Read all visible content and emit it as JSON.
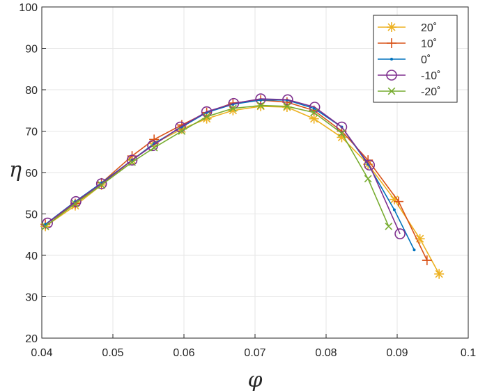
{
  "chart_data": {
    "type": "line",
    "xlabel": "φ",
    "ylabel": "η",
    "xlim": [
      0.04,
      0.1
    ],
    "ylim": [
      20,
      100
    ],
    "xticks": [
      "0.04",
      "0.05",
      "0.06",
      "0.07",
      "0.08",
      "0.09",
      "0.1"
    ],
    "yticks": [
      "20",
      "30",
      "40",
      "50",
      "60",
      "70",
      "80",
      "90",
      "100"
    ],
    "grid": true,
    "legend_position": "top-right",
    "series": [
      {
        "name": "20˚",
        "color": "#EDB120",
        "marker": "asterisk",
        "x": [
          0.0405,
          0.0447,
          0.0484,
          0.0527,
          0.0558,
          0.0597,
          0.0632,
          0.0669,
          0.0708,
          0.0745,
          0.0783,
          0.0822,
          0.0859,
          0.0896,
          0.0932,
          0.0959
        ],
        "y": [
          47.0,
          52.0,
          57.0,
          63.0,
          67.0,
          70.5,
          73.0,
          75.0,
          76.0,
          75.8,
          73.0,
          68.5,
          62.0,
          53.5,
          44.0,
          35.5
        ]
      },
      {
        "name": "10˚",
        "color": "#D95319",
        "marker": "plus",
        "x": [
          0.0405,
          0.0447,
          0.0484,
          0.0527,
          0.0558,
          0.0597,
          0.0632,
          0.0669,
          0.0708,
          0.0745,
          0.0783,
          0.0822,
          0.0859,
          0.0902,
          0.0942
        ],
        "y": [
          47.5,
          52.5,
          57.5,
          64.0,
          68.0,
          71.5,
          74.5,
          76.8,
          77.5,
          77.0,
          75.0,
          70.0,
          63.0,
          53.0,
          38.8
        ]
      },
      {
        "name": "0˚",
        "color": "#0072BD",
        "marker": "dot",
        "x": [
          0.0405,
          0.0447,
          0.0484,
          0.0527,
          0.0558,
          0.0597,
          0.0632,
          0.0669,
          0.0708,
          0.0745,
          0.0783,
          0.0822,
          0.0859,
          0.0896,
          0.0924
        ],
        "y": [
          47.5,
          53.0,
          57.5,
          63.0,
          67.0,
          71.0,
          74.5,
          76.5,
          77.5,
          77.5,
          75.5,
          71.0,
          62.0,
          51.0,
          41.3
        ]
      },
      {
        "name": "-10˚",
        "color": "#7E2F8E",
        "marker": "circle",
        "x": [
          0.0408,
          0.0448,
          0.0484,
          0.0527,
          0.0556,
          0.0595,
          0.0632,
          0.067,
          0.0708,
          0.0746,
          0.0784,
          0.0822,
          0.0861,
          0.0904
        ],
        "y": [
          47.8,
          53.0,
          57.3,
          63.0,
          66.5,
          71.0,
          74.7,
          76.7,
          77.8,
          77.6,
          75.8,
          71.0,
          61.8,
          45.2
        ]
      },
      {
        "name": "-20˚",
        "color": "#77AC30",
        "marker": "cross",
        "x": [
          0.0405,
          0.0447,
          0.0484,
          0.0527,
          0.0558,
          0.0597,
          0.0632,
          0.0669,
          0.0708,
          0.0745,
          0.0783,
          0.0822,
          0.0859,
          0.0888
        ],
        "y": [
          47.0,
          52.5,
          57.0,
          62.5,
          66.0,
          70.0,
          73.5,
          75.5,
          76.2,
          76.0,
          74.5,
          69.5,
          58.5,
          47.0
        ]
      }
    ]
  }
}
